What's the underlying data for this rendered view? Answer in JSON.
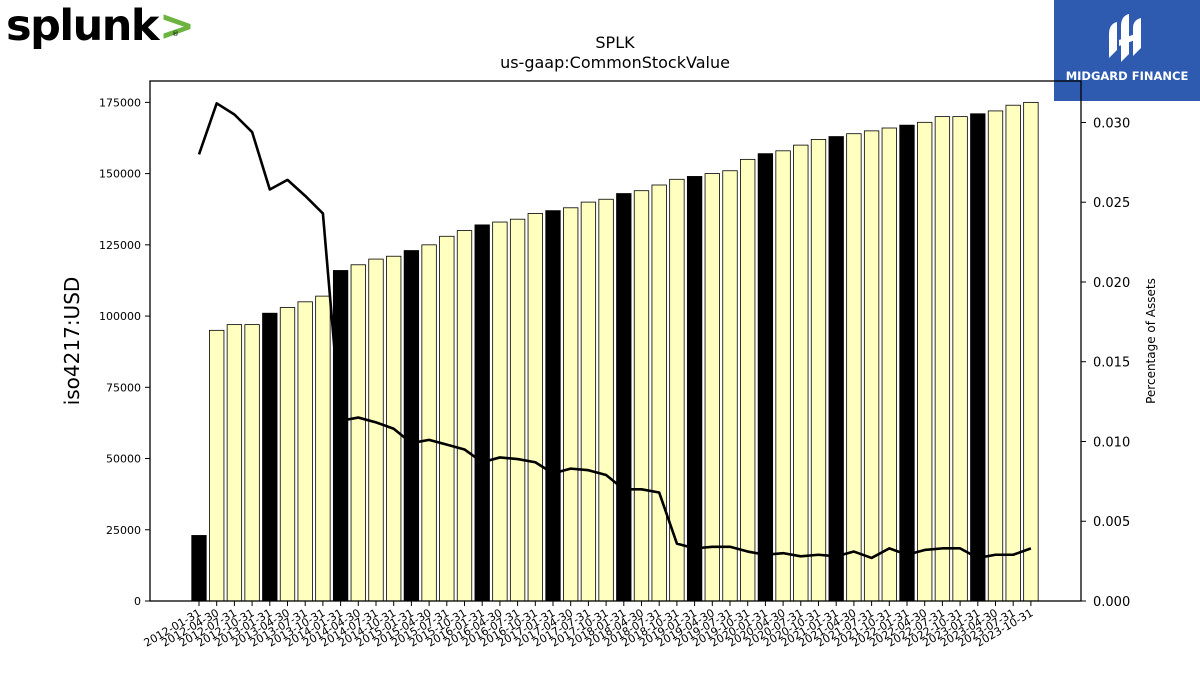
{
  "branding": {
    "left_logo_text": "splunk",
    "left_logo_chevron": ">",
    "left_logo_reg": "®",
    "right_logo_text": "MIDGARD FINANCE",
    "right_logo_bg": "#2e5bb0"
  },
  "chart_data": {
    "type": "bar",
    "title": "SPLK",
    "subtitle": "us-gaap:CommonStockValue",
    "ylabel": "iso4217:USD",
    "ylabel_right": "Percentage of Assets",
    "ylim": [
      0,
      182500
    ],
    "ylim_right": [
      0,
      0.0326
    ],
    "yticks": [
      0,
      25000,
      50000,
      75000,
      100000,
      125000,
      150000,
      175000
    ],
    "yticks_right": [
      "0.000",
      "0.005",
      "0.010",
      "0.015",
      "0.020",
      "0.025",
      "0.030"
    ],
    "grid": false,
    "colors": {
      "bar_q": "#ffffc0",
      "bar_fy": "#000000",
      "line": "#000000"
    },
    "categories": [
      "2012-01-31",
      "2012-04-30",
      "2012-07-31",
      "2012-10-31",
      "2013-01-31",
      "2013-04-30",
      "2013-07-31",
      "2013-10-31",
      "2014-01-31",
      "2014-04-30",
      "2014-07-31",
      "2014-10-31",
      "2015-01-31",
      "2015-04-30",
      "2015-07-31",
      "2015-10-31",
      "2016-01-31",
      "2016-04-30",
      "2016-07-31",
      "2016-10-31",
      "2017-01-31",
      "2017-04-30",
      "2017-07-31",
      "2017-10-31",
      "2018-01-31",
      "2018-04-30",
      "2018-07-31",
      "2018-10-31",
      "2019-01-31",
      "2019-04-30",
      "2019-07-31",
      "2019-10-31",
      "2020-01-31",
      "2020-04-30",
      "2020-07-31",
      "2020-10-31",
      "2021-01-31",
      "2021-04-30",
      "2021-07-31",
      "2021-10-31",
      "2022-01-31",
      "2022-04-30",
      "2022-07-31",
      "2022-10-31",
      "2023-01-31",
      "2023-04-30",
      "2023-07-31",
      "2023-10-31"
    ],
    "series": [
      {
        "kind": "bar",
        "values": [
          23000,
          95000,
          97000,
          97000,
          101000,
          103000,
          105000,
          107000,
          116000,
          118000,
          120000,
          121000,
          123000,
          125000,
          128000,
          130000,
          132000,
          133000,
          134000,
          136000,
          137000,
          138000,
          140000,
          141000,
          143000,
          144000,
          146000,
          148000,
          149000,
          150000,
          151000,
          155000,
          157000,
          158000,
          160000,
          162000,
          163000,
          164000,
          165000,
          166000,
          167000,
          168000,
          170000,
          170000,
          171000,
          172000,
          174000,
          175000
        ],
        "fiscal_year_end": [
          true,
          false,
          false,
          false,
          true,
          false,
          false,
          false,
          true,
          false,
          false,
          false,
          true,
          false,
          false,
          false,
          true,
          false,
          false,
          false,
          true,
          false,
          false,
          false,
          true,
          false,
          false,
          false,
          true,
          false,
          false,
          false,
          true,
          false,
          false,
          false,
          true,
          false,
          false,
          false,
          true,
          false,
          false,
          false,
          true,
          false,
          false,
          false
        ]
      },
      {
        "kind": "line",
        "axis": "right",
        "values": [
          0.028,
          0.0312,
          0.0305,
          0.0294,
          0.0258,
          0.0264,
          0.0254,
          0.0243,
          0.0113,
          0.0115,
          0.0112,
          0.0108,
          0.0099,
          0.0101,
          0.0098,
          0.0095,
          0.0087,
          0.009,
          0.0089,
          0.0087,
          0.008,
          0.0083,
          0.0082,
          0.0079,
          0.007,
          0.007,
          0.0068,
          0.0036,
          0.0033,
          0.0034,
          0.0034,
          0.0031,
          0.0029,
          0.003,
          0.0028,
          0.0029,
          0.0028,
          0.0031,
          0.0027,
          0.0033,
          0.0029,
          0.0032,
          0.0033,
          0.0033,
          0.0027,
          0.0029,
          0.0029,
          0.0033
        ]
      }
    ]
  }
}
